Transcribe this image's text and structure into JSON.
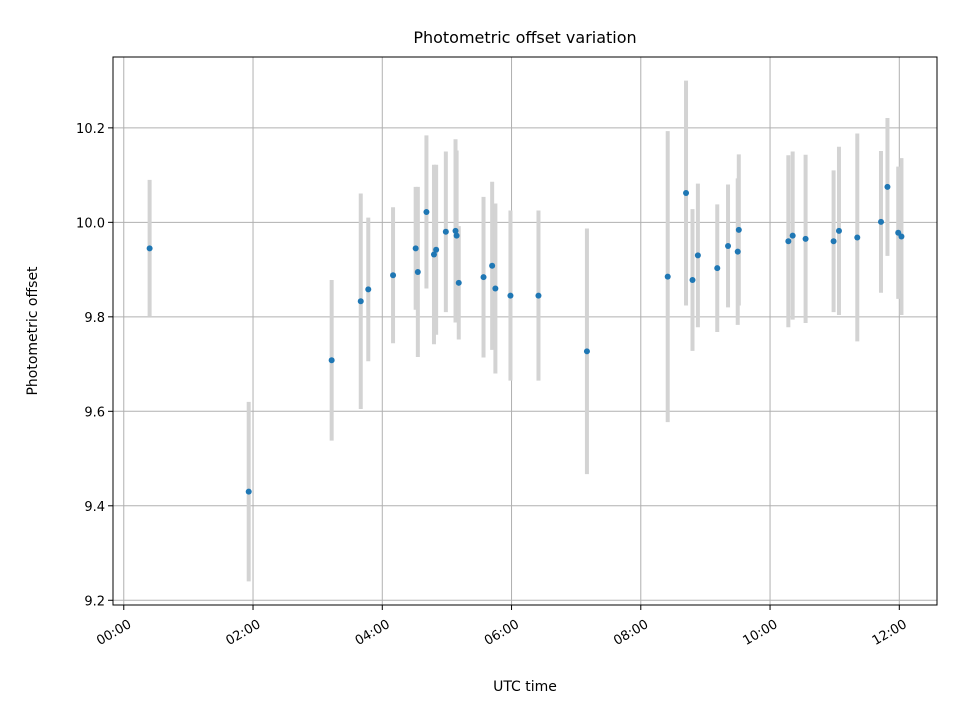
{
  "chart_data": {
    "type": "scatter",
    "title": "Photometric offset variation",
    "xlabel": "UTC time",
    "ylabel": "Photometric offset",
    "x_unit": "UTC time (HH:MM)",
    "xlim": [
      "-00:10",
      "12:35"
    ],
    "ylim": [
      9.19,
      10.35
    ],
    "grid": true,
    "x_ticks": [
      "00:00",
      "02:00",
      "04:00",
      "06:00",
      "08:00",
      "10:00",
      "12:00"
    ],
    "y_ticks": [
      9.2,
      9.4,
      9.6,
      9.8,
      10.0,
      10.2
    ],
    "y_tick_labels": [
      "9.2",
      "9.4",
      "9.6",
      "9.8",
      "10.0",
      "10.2"
    ],
    "marker_color": "#1f77b4",
    "errorbar_color": "#d3d3d3",
    "points": [
      {
        "x": "00:24",
        "y": 9.945,
        "err": 0.145
      },
      {
        "x": "01:56",
        "y": 9.43,
        "err": 0.19
      },
      {
        "x": "03:13",
        "y": 9.708,
        "err": 0.17
      },
      {
        "x": "03:40",
        "y": 9.833,
        "err": 0.228
      },
      {
        "x": "03:47",
        "y": 9.858,
        "err": 0.152
      },
      {
        "x": "04:10",
        "y": 9.888,
        "err": 0.144
      },
      {
        "x": "04:31",
        "y": 9.945,
        "err": 0.13
      },
      {
        "x": "04:33",
        "y": 9.895,
        "err": 0.18
      },
      {
        "x": "04:41",
        "y": 10.022,
        "err": 0.162
      },
      {
        "x": "04:48",
        "y": 9.932,
        "err": 0.19
      },
      {
        "x": "04:50",
        "y": 9.942,
        "err": 0.18
      },
      {
        "x": "04:59",
        "y": 9.98,
        "err": 0.17
      },
      {
        "x": "05:08",
        "y": 9.982,
        "err": 0.194
      },
      {
        "x": "05:09",
        "y": 9.972,
        "err": 0.18
      },
      {
        "x": "05:11",
        "y": 9.872,
        "err": 0.12
      },
      {
        "x": "05:34",
        "y": 9.884,
        "err": 0.17
      },
      {
        "x": "05:42",
        "y": 9.908,
        "err": 0.178
      },
      {
        "x": "05:45",
        "y": 9.86,
        "err": 0.18
      },
      {
        "x": "05:59",
        "y": 9.845,
        "err": 0.18
      },
      {
        "x": "06:25",
        "y": 9.845,
        "err": 0.18
      },
      {
        "x": "07:10",
        "y": 9.727,
        "err": 0.26
      },
      {
        "x": "08:25",
        "y": 9.885,
        "err": 0.308
      },
      {
        "x": "08:42",
        "y": 10.062,
        "err": 0.238
      },
      {
        "x": "08:48",
        "y": 9.878,
        "err": 0.15
      },
      {
        "x": "08:53",
        "y": 9.93,
        "err": 0.152
      },
      {
        "x": "09:11",
        "y": 9.903,
        "err": 0.135
      },
      {
        "x": "09:21",
        "y": 9.95,
        "err": 0.13
      },
      {
        "x": "09:30",
        "y": 9.938,
        "err": 0.155
      },
      {
        "x": "09:31",
        "y": 9.984,
        "err": 0.16
      },
      {
        "x": "10:17",
        "y": 9.96,
        "err": 0.182
      },
      {
        "x": "10:21",
        "y": 9.972,
        "err": 0.178
      },
      {
        "x": "10:33",
        "y": 9.965,
        "err": 0.178
      },
      {
        "x": "10:59",
        "y": 9.96,
        "err": 0.15
      },
      {
        "x": "11:04",
        "y": 9.982,
        "err": 0.178
      },
      {
        "x": "11:21",
        "y": 9.968,
        "err": 0.22
      },
      {
        "x": "11:43",
        "y": 10.001,
        "err": 0.15
      },
      {
        "x": "11:49",
        "y": 10.075,
        "err": 0.146
      },
      {
        "x": "11:59",
        "y": 9.978,
        "err": 0.14
      },
      {
        "x": "12:02",
        "y": 9.97,
        "err": 0.166
      }
    ]
  }
}
